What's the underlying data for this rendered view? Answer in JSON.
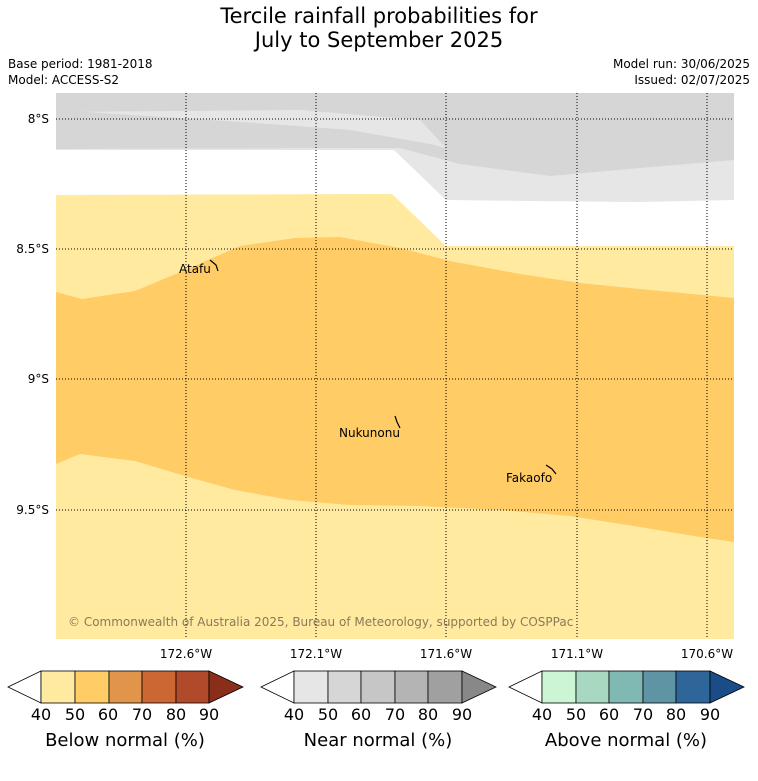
{
  "header": {
    "title_line1": "Tercile rainfall probabilities for",
    "title_line2": "July to September 2025",
    "base_period": "Base period: 1981-2018",
    "model": "Model: ACCESS-S2",
    "model_run": "Model run: 30/06/2025",
    "issued": "Issued: 02/07/2025"
  },
  "map": {
    "lat_labels": [
      "8°S",
      "8.5°S",
      "9°S",
      "9.5°S"
    ],
    "lon_labels": [
      "172.6°W",
      "172.1°W",
      "171.6°W",
      "171.1°W",
      "170.6°W"
    ],
    "places": [
      "Atafu",
      "Nukunonu",
      "Fakaofo"
    ],
    "copyright": "© Commonwealth of Australia 2025, Bureau of Meteorology, supported by COSPPac"
  },
  "colorbars": [
    {
      "label": "Below normal (%)",
      "ticks": [
        "40",
        "50",
        "60",
        "70",
        "80",
        "90"
      ],
      "colors": [
        "#ffeaa0",
        "#ffcc66",
        "#e0954a",
        "#cc6633",
        "#b04a2a",
        "#8a2e1a"
      ]
    },
    {
      "label": "Near normal (%)",
      "ticks": [
        "40",
        "50",
        "60",
        "70",
        "80",
        "90"
      ],
      "colors": [
        "#e6e6e6",
        "#d6d6d6",
        "#c6c6c6",
        "#b4b4b4",
        "#a0a0a0",
        "#888888"
      ]
    },
    {
      "label": "Above normal (%)",
      "ticks": [
        "40",
        "50",
        "60",
        "70",
        "80",
        "90"
      ],
      "colors": [
        "#ccf5d6",
        "#a6d9bf",
        "#80b8b3",
        "#5e94a3",
        "#2e6699",
        "#1a4d87"
      ]
    }
  ]
}
